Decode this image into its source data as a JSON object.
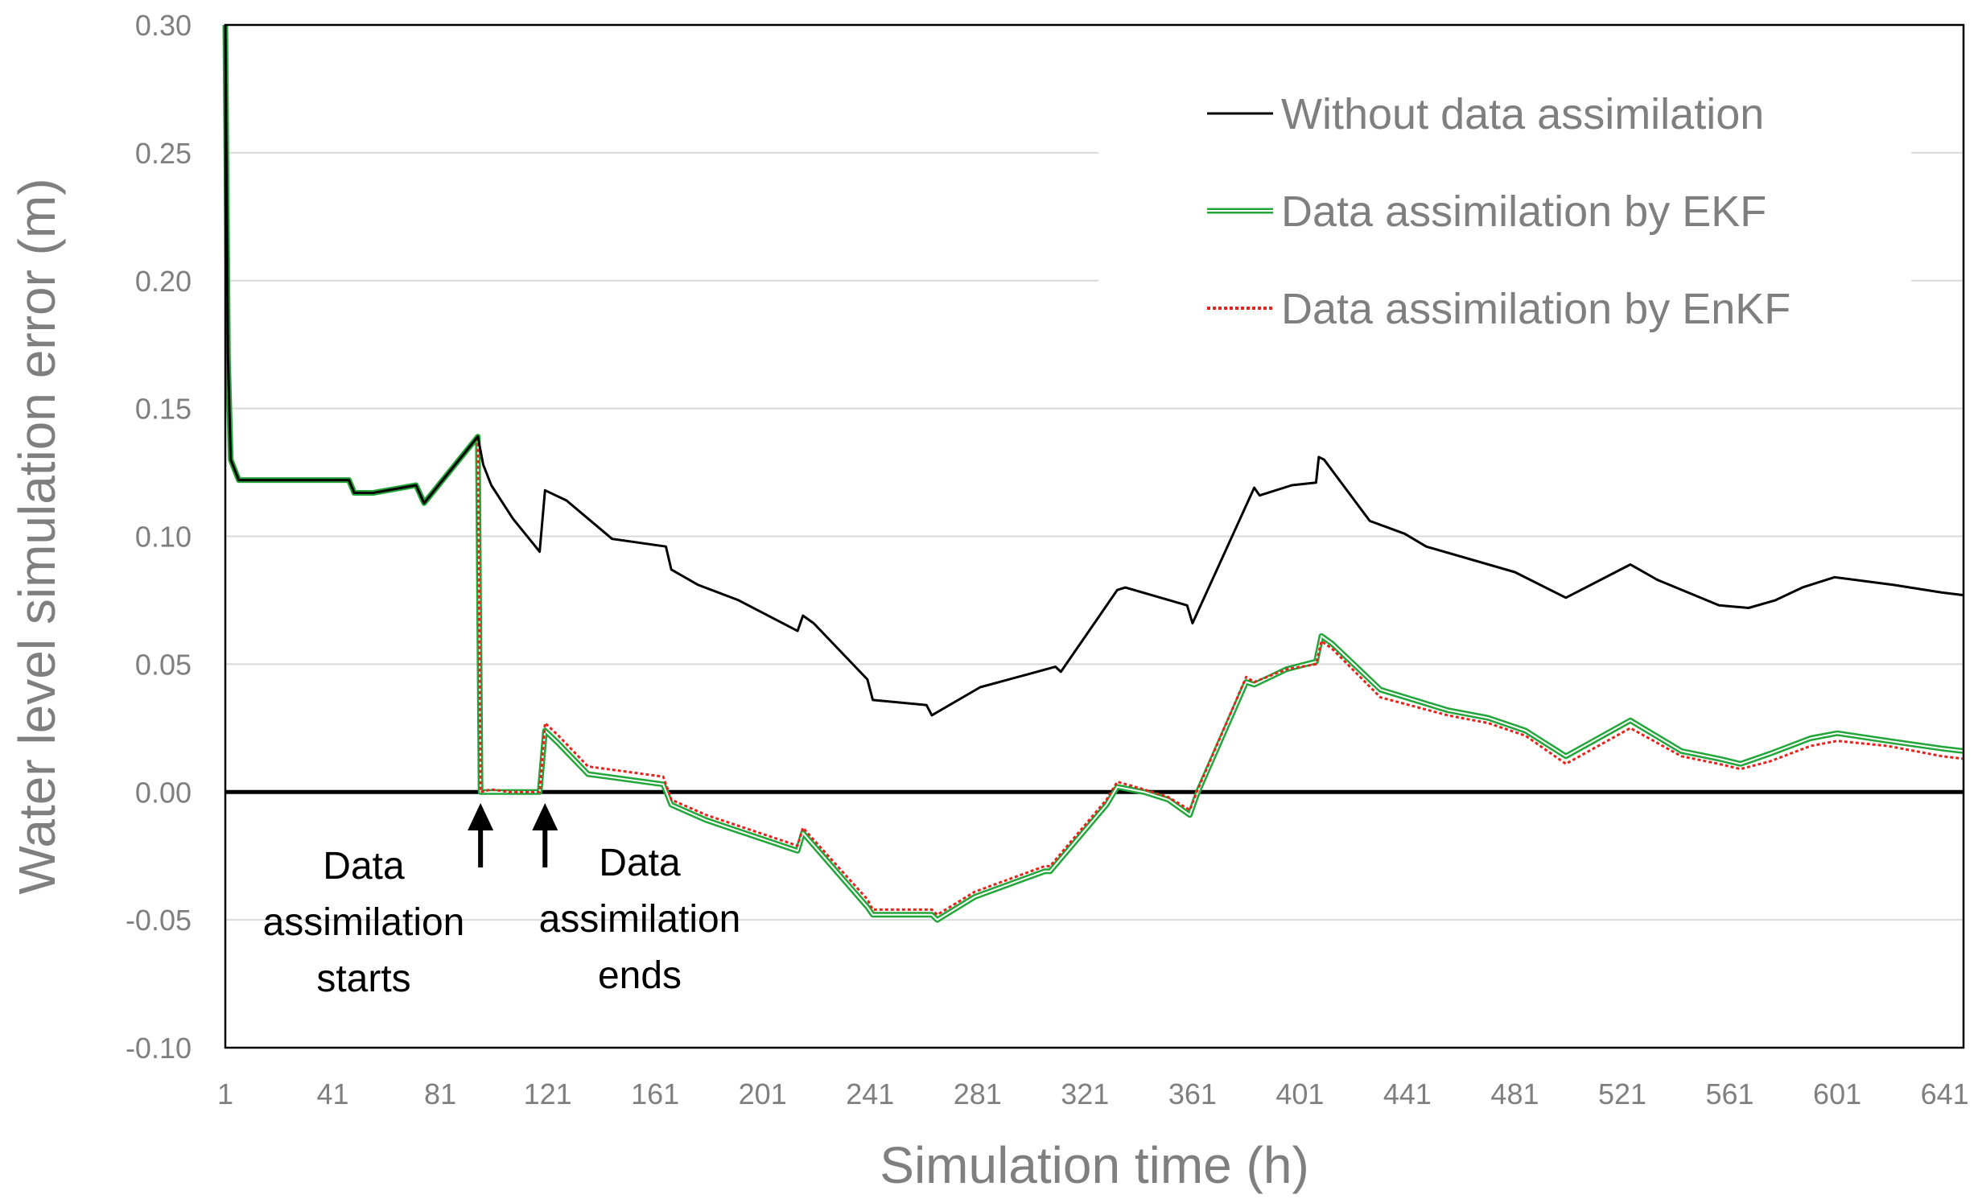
{
  "chart_data": {
    "type": "line",
    "title": "",
    "xlabel": "Simulation time (h)",
    "ylabel": "Water level simulation error (m)",
    "xlim": [
      1,
      648
    ],
    "ylim": [
      -0.1,
      0.3
    ],
    "x_ticks": [
      1,
      41,
      81,
      121,
      161,
      201,
      241,
      281,
      321,
      361,
      401,
      441,
      481,
      521,
      561,
      601,
      641
    ],
    "x_tick_labels": [
      "1",
      "41",
      "81",
      "121",
      "161",
      "201",
      "241",
      "281",
      "321",
      "361",
      "401",
      "441",
      "481",
      "521",
      "561",
      "601",
      "641"
    ],
    "y_ticks": [
      -0.1,
      -0.05,
      0.0,
      0.05,
      0.1,
      0.15,
      0.2,
      0.25,
      0.3
    ],
    "y_tick_labels": [
      "-0.10",
      "-0.05",
      "0.00",
      "0.05",
      "0.10",
      "0.15",
      "0.20",
      "0.25",
      "0.30"
    ],
    "grid": "horizontal",
    "legend_position": "top-right",
    "colors": {
      "without": "#000000",
      "ekf": "#22a63a",
      "enkf": "#e8231c",
      "grid": "#d9d9d9",
      "zero_line": "#000000"
    },
    "series": [
      {
        "name": "Without data assimilation",
        "style": "solid-black",
        "points": [
          [
            1,
            0.3
          ],
          [
            2,
            0.17
          ],
          [
            3,
            0.13
          ],
          [
            6,
            0.122
          ],
          [
            47,
            0.122
          ],
          [
            49,
            0.117
          ],
          [
            56,
            0.117
          ],
          [
            72,
            0.12
          ],
          [
            75,
            0.113
          ],
          [
            95,
            0.139
          ],
          [
            97,
            0.128
          ],
          [
            100,
            0.12
          ],
          [
            108,
            0.107
          ],
          [
            118,
            0.094
          ],
          [
            120,
            0.118
          ],
          [
            128,
            0.114
          ],
          [
            145,
            0.099
          ],
          [
            165,
            0.096
          ],
          [
            167,
            0.087
          ],
          [
            177,
            0.081
          ],
          [
            192,
            0.075
          ],
          [
            214,
            0.063
          ],
          [
            216,
            0.069
          ],
          [
            220,
            0.066
          ],
          [
            240,
            0.044
          ],
          [
            242,
            0.036
          ],
          [
            262,
            0.034
          ],
          [
            264,
            0.03
          ],
          [
            282,
            0.041
          ],
          [
            310,
            0.049
          ],
          [
            312,
            0.047
          ],
          [
            333,
            0.079
          ],
          [
            336,
            0.08
          ],
          [
            359,
            0.073
          ],
          [
            361,
            0.066
          ],
          [
            384,
            0.119
          ],
          [
            386,
            0.116
          ],
          [
            398,
            0.12
          ],
          [
            407,
            0.121
          ],
          [
            408,
            0.131
          ],
          [
            410,
            0.13
          ],
          [
            427,
            0.106
          ],
          [
            440,
            0.101
          ],
          [
            448,
            0.096
          ],
          [
            481,
            0.086
          ],
          [
            500,
            0.076
          ],
          [
            524,
            0.089
          ],
          [
            534,
            0.083
          ],
          [
            557,
            0.073
          ],
          [
            568,
            0.072
          ],
          [
            578,
            0.075
          ],
          [
            588,
            0.08
          ],
          [
            600,
            0.084
          ],
          [
            622,
            0.081
          ],
          [
            640,
            0.078
          ],
          [
            648,
            0.077
          ]
        ]
      },
      {
        "name": "Data assimilation by EKF",
        "style": "double-green",
        "points": [
          [
            1,
            0.3
          ],
          [
            2,
            0.17
          ],
          [
            3,
            0.13
          ],
          [
            6,
            0.122
          ],
          [
            47,
            0.122
          ],
          [
            49,
            0.117
          ],
          [
            56,
            0.117
          ],
          [
            72,
            0.12
          ],
          [
            75,
            0.113
          ],
          [
            95,
            0.139
          ],
          [
            96,
            0.0
          ],
          [
            100,
            0.0
          ],
          [
            118,
            0.0
          ],
          [
            120,
            0.024
          ],
          [
            125,
            0.019
          ],
          [
            136,
            0.007
          ],
          [
            164,
            0.003
          ],
          [
            167,
            -0.005
          ],
          [
            180,
            -0.011
          ],
          [
            214,
            -0.023
          ],
          [
            216,
            -0.016
          ],
          [
            240,
            -0.045
          ],
          [
            242,
            -0.048
          ],
          [
            264,
            -0.048
          ],
          [
            266,
            -0.05
          ],
          [
            280,
            -0.041
          ],
          [
            306,
            -0.031
          ],
          [
            308,
            -0.031
          ],
          [
            329,
            -0.005
          ],
          [
            333,
            0.002
          ],
          [
            343,
            0.0
          ],
          [
            352,
            -0.003
          ],
          [
            360,
            -0.009
          ],
          [
            363,
            0.0
          ],
          [
            381,
            0.043
          ],
          [
            384,
            0.042
          ],
          [
            396,
            0.048
          ],
          [
            407,
            0.051
          ],
          [
            409,
            0.061
          ],
          [
            413,
            0.058
          ],
          [
            431,
            0.04
          ],
          [
            456,
            0.032
          ],
          [
            471,
            0.029
          ],
          [
            485,
            0.024
          ],
          [
            500,
            0.014
          ],
          [
            524,
            0.028
          ],
          [
            543,
            0.016
          ],
          [
            557,
            0.013
          ],
          [
            565,
            0.011
          ],
          [
            576,
            0.015
          ],
          [
            591,
            0.021
          ],
          [
            601,
            0.023
          ],
          [
            620,
            0.02
          ],
          [
            640,
            0.017
          ],
          [
            648,
            0.016
          ]
        ]
      },
      {
        "name": "Data assimilation by EnKF",
        "style": "dotted-red",
        "points": [
          [
            1,
            0.3
          ],
          [
            2,
            0.17
          ],
          [
            3,
            0.13
          ],
          [
            6,
            0.122
          ],
          [
            47,
            0.122
          ],
          [
            49,
            0.117
          ],
          [
            56,
            0.117
          ],
          [
            72,
            0.12
          ],
          [
            75,
            0.113
          ],
          [
            95,
            0.139
          ],
          [
            96,
            0.0
          ],
          [
            100,
            0.001
          ],
          [
            107,
            0.0
          ],
          [
            118,
            0.0
          ],
          [
            120,
            0.027
          ],
          [
            125,
            0.022
          ],
          [
            136,
            0.01
          ],
          [
            164,
            0.006
          ],
          [
            167,
            -0.003
          ],
          [
            180,
            -0.009
          ],
          [
            214,
            -0.021
          ],
          [
            216,
            -0.014
          ],
          [
            240,
            -0.042
          ],
          [
            242,
            -0.046
          ],
          [
            264,
            -0.046
          ],
          [
            266,
            -0.048
          ],
          [
            280,
            -0.039
          ],
          [
            306,
            -0.029
          ],
          [
            308,
            -0.029
          ],
          [
            329,
            -0.003
          ],
          [
            333,
            0.004
          ],
          [
            343,
            0.001
          ],
          [
            352,
            -0.002
          ],
          [
            360,
            -0.007
          ],
          [
            363,
            0.001
          ],
          [
            381,
            0.045
          ],
          [
            384,
            0.043
          ],
          [
            396,
            0.048
          ],
          [
            407,
            0.05
          ],
          [
            409,
            0.059
          ],
          [
            413,
            0.056
          ],
          [
            431,
            0.037
          ],
          [
            456,
            0.03
          ],
          [
            471,
            0.027
          ],
          [
            485,
            0.022
          ],
          [
            500,
            0.011
          ],
          [
            524,
            0.025
          ],
          [
            543,
            0.014
          ],
          [
            557,
            0.011
          ],
          [
            565,
            0.009
          ],
          [
            576,
            0.012
          ],
          [
            591,
            0.018
          ],
          [
            601,
            0.02
          ],
          [
            620,
            0.018
          ],
          [
            640,
            0.014
          ],
          [
            648,
            0.013
          ]
        ]
      }
    ],
    "annotations": [
      {
        "name": "assimilation-starts",
        "x": 96,
        "lines": [
          "Data",
          "assimilation",
          "starts"
        ]
      },
      {
        "name": "assimilation-ends",
        "x": 120,
        "lines": [
          "Data",
          "assimilation",
          "ends"
        ]
      }
    ]
  }
}
